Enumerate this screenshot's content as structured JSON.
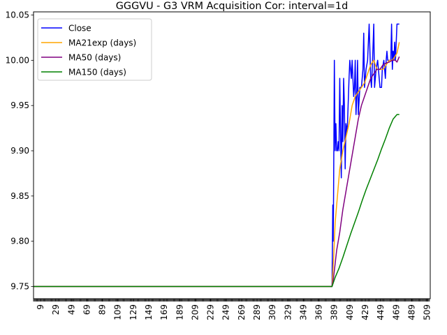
{
  "chart_data": {
    "type": "line",
    "title": "GGGVU - G3 VRM Acquisition Cor: interval=1d",
    "xlabel": "",
    "ylabel": "",
    "xlim": [
      0,
      513
    ],
    "ylim": [
      9.7365,
      10.0535
    ],
    "yticks": [
      9.75,
      9.8,
      9.85,
      9.9,
      9.95,
      10.0,
      10.05
    ],
    "ytick_labels": [
      "9.75",
      "9.80",
      "9.85",
      "9.90",
      "9.95",
      "10.00",
      "10.05"
    ],
    "xticks": [
      9,
      29,
      49,
      69,
      89,
      109,
      129,
      149,
      169,
      189,
      209,
      229,
      249,
      269,
      289,
      309,
      329,
      349,
      369,
      389,
      409,
      429,
      449,
      469,
      489,
      509
    ],
    "xtick_labels": [
      "9",
      "29",
      "49",
      "69",
      "89",
      "109",
      "129",
      "149",
      "169",
      "189",
      "209",
      "229",
      "249",
      "269",
      "289",
      "309",
      "329",
      "349",
      "369",
      "389",
      "409",
      "429",
      "449",
      "469",
      "489",
      "509"
    ],
    "minor_ticks_every": 1,
    "grid": false,
    "legend_position": "upper-left",
    "series": [
      {
        "name": "Close",
        "color": "#0000ff",
        "points": [
          [
            384,
            9.75
          ],
          [
            386,
            9.75
          ],
          [
            387,
            9.84
          ],
          [
            387.5,
            9.8
          ],
          [
            388,
            9.85
          ],
          [
            389,
            10.0
          ],
          [
            390,
            9.9
          ],
          [
            391,
            9.93
          ],
          [
            392,
            9.9
          ],
          [
            393,
            9.9
          ],
          [
            394,
            9.91
          ],
          [
            395,
            9.9
          ],
          [
            396,
            9.98
          ],
          [
            397,
            9.92
          ],
          [
            398,
            9.87
          ],
          [
            399,
            9.95
          ],
          [
            400,
            9.91
          ],
          [
            401,
            9.98
          ],
          [
            402,
            9.95
          ],
          [
            403,
            9.88
          ],
          [
            404,
            9.93
          ],
          [
            405,
            9.92
          ],
          [
            406,
            9.93
          ],
          [
            408,
            9.98
          ],
          [
            409,
            10.0
          ],
          [
            411,
            9.98
          ],
          [
            412,
            10.0
          ],
          [
            414,
            9.96
          ],
          [
            415,
            9.97
          ],
          [
            416,
            10.0
          ],
          [
            417,
            9.94
          ],
          [
            418,
            9.96
          ],
          [
            419,
            10.0
          ],
          [
            420,
            9.94
          ],
          [
            422,
            9.97
          ],
          [
            424,
            9.97
          ],
          [
            426,
            9.99
          ],
          [
            427,
            10.03
          ],
          [
            428,
            9.97
          ],
          [
            430,
            9.99
          ],
          [
            432,
            10.0
          ],
          [
            434,
            10.04
          ],
          [
            435,
            10.01
          ],
          [
            436,
            9.98
          ],
          [
            437,
            9.97
          ],
          [
            438,
            9.99
          ],
          [
            440,
            10.04
          ],
          [
            441,
            9.97
          ],
          [
            443,
            9.99
          ],
          [
            445,
            10.0
          ],
          [
            446,
            9.99
          ],
          [
            448,
            9.97
          ],
          [
            450,
            9.97
          ],
          [
            451,
            9.99
          ],
          [
            453,
            10.0
          ],
          [
            455,
            9.98
          ],
          [
            456,
            10.0
          ],
          [
            457,
            10.01
          ],
          [
            458,
            10.0
          ],
          [
            460,
            10.0
          ],
          [
            462,
            10.0
          ],
          [
            463,
            10.04
          ],
          [
            464,
            9.99
          ],
          [
            465,
            10.01
          ],
          [
            466,
            10.0
          ],
          [
            467,
            10.02
          ],
          [
            468,
            10.0
          ],
          [
            469,
            10.02
          ],
          [
            470,
            10.04
          ],
          [
            473,
            10.04
          ]
        ]
      },
      {
        "name": "MA21exp (days)",
        "color": "#ffa500",
        "points": [
          [
            0,
            9.75
          ],
          [
            386,
            9.75
          ],
          [
            388,
            9.78
          ],
          [
            390,
            9.82
          ],
          [
            392,
            9.84
          ],
          [
            394,
            9.86
          ],
          [
            396,
            9.88
          ],
          [
            398,
            9.89
          ],
          [
            400,
            9.9
          ],
          [
            404,
            9.915
          ],
          [
            408,
            9.93
          ],
          [
            412,
            9.95
          ],
          [
            416,
            9.96
          ],
          [
            420,
            9.965
          ],
          [
            424,
            9.97
          ],
          [
            428,
            9.975
          ],
          [
            432,
            9.985
          ],
          [
            436,
            9.995
          ],
          [
            440,
            10.0
          ],
          [
            444,
            9.99
          ],
          [
            448,
            9.99
          ],
          [
            452,
            9.99
          ],
          [
            456,
            9.995
          ],
          [
            460,
            10.0
          ],
          [
            464,
            10.0
          ],
          [
            468,
            10.005
          ],
          [
            470,
            10.008
          ],
          [
            473,
            10.02
          ]
        ]
      },
      {
        "name": "MA50 (days)",
        "color": "#800080",
        "points": [
          [
            0,
            9.75
          ],
          [
            386,
            9.75
          ],
          [
            388,
            9.76
          ],
          [
            392,
            9.79
          ],
          [
            396,
            9.81
          ],
          [
            400,
            9.835
          ],
          [
            404,
            9.855
          ],
          [
            408,
            9.875
          ],
          [
            412,
            9.895
          ],
          [
            416,
            9.915
          ],
          [
            420,
            9.935
          ],
          [
            424,
            9.95
          ],
          [
            428,
            9.96
          ],
          [
            432,
            9.97
          ],
          [
            436,
            9.98
          ],
          [
            440,
            9.985
          ],
          [
            444,
            9.99
          ],
          [
            448,
            9.99
          ],
          [
            452,
            9.995
          ],
          [
            456,
            9.997
          ],
          [
            460,
            9.998
          ],
          [
            464,
            10.0
          ],
          [
            468,
            10.0
          ],
          [
            470,
            9.998
          ],
          [
            473,
            10.004
          ]
        ]
      },
      {
        "name": "MA150 (days)",
        "color": "#008000",
        "points": [
          [
            0,
            9.75
          ],
          [
            386,
            9.75
          ],
          [
            390,
            9.76
          ],
          [
            395,
            9.77
          ],
          [
            400,
            9.782
          ],
          [
            405,
            9.795
          ],
          [
            410,
            9.808
          ],
          [
            415,
            9.82
          ],
          [
            420,
            9.832
          ],
          [
            425,
            9.845
          ],
          [
            430,
            9.857
          ],
          [
            435,
            9.868
          ],
          [
            440,
            9.879
          ],
          [
            445,
            9.89
          ],
          [
            450,
            9.902
          ],
          [
            455,
            9.913
          ],
          [
            460,
            9.925
          ],
          [
            465,
            9.935
          ],
          [
            470,
            9.94
          ],
          [
            473,
            9.94
          ]
        ]
      }
    ]
  }
}
